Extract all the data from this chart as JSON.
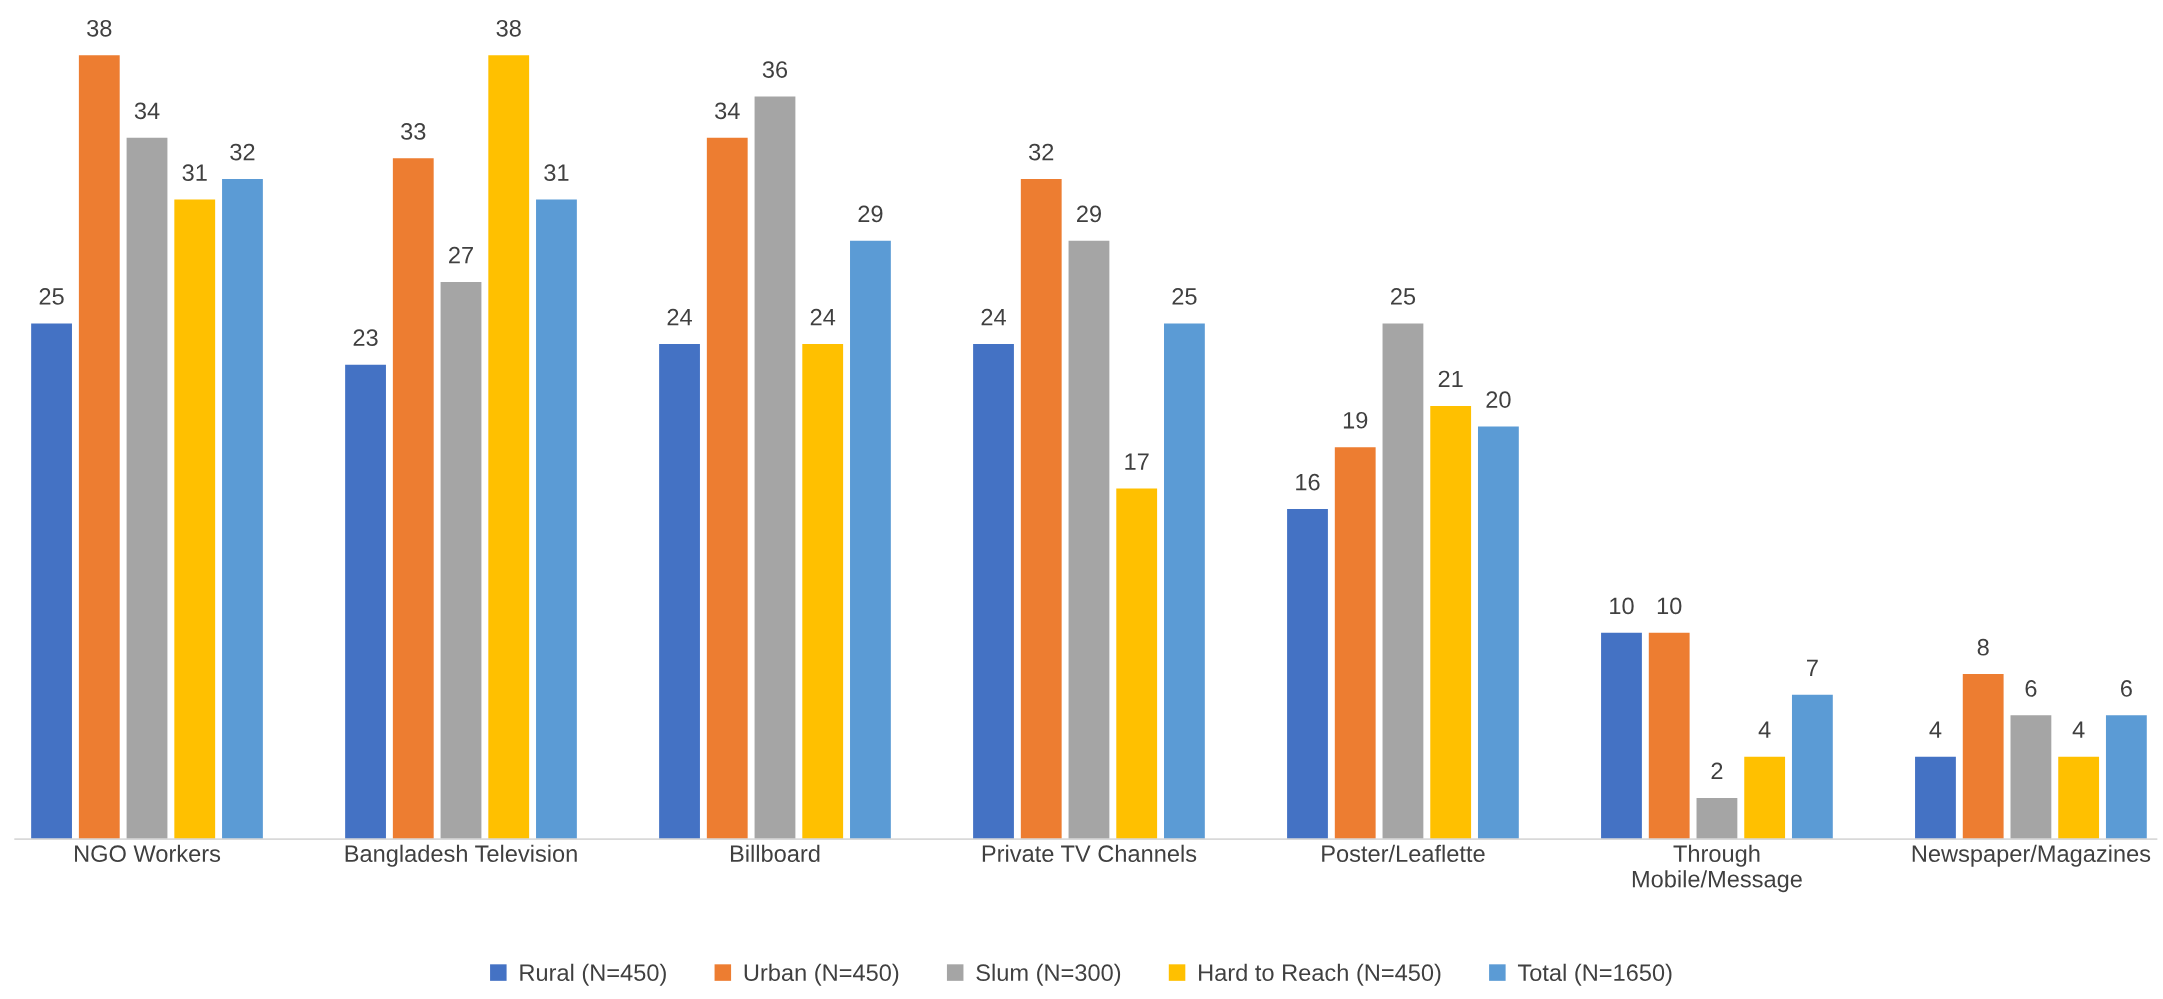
{
  "chart_data": {
    "type": "bar",
    "categories": [
      "NGO Workers",
      "Bangladesh Television",
      "Billboard",
      "Private TV Channels",
      "Poster/Leaflette",
      "Through\nMobile/Message",
      "Newspaper/Magazines"
    ],
    "series": [
      {
        "name": "Rural (N=450)",
        "color": "#4472c4",
        "values": [
          25,
          23,
          24,
          24,
          16,
          10,
          4
        ]
      },
      {
        "name": "Urban (N=450)",
        "color": "#ed7d31",
        "values": [
          38,
          33,
          34,
          32,
          19,
          10,
          8
        ]
      },
      {
        "name": "Slum (N=300)",
        "color": "#a5a5a5",
        "values": [
          34,
          27,
          36,
          29,
          25,
          2,
          6
        ]
      },
      {
        "name": "Hard to Reach (N=450)",
        "color": "#ffc000",
        "values": [
          31,
          38,
          24,
          17,
          21,
          4,
          4
        ]
      },
      {
        "name": "Total (N=1650)",
        "color": "#5b9bd5",
        "values": [
          32,
          31,
          29,
          25,
          20,
          7,
          6
        ]
      }
    ],
    "tick_labels": "x",
    "data_labels": true,
    "legend": "bottom"
  }
}
